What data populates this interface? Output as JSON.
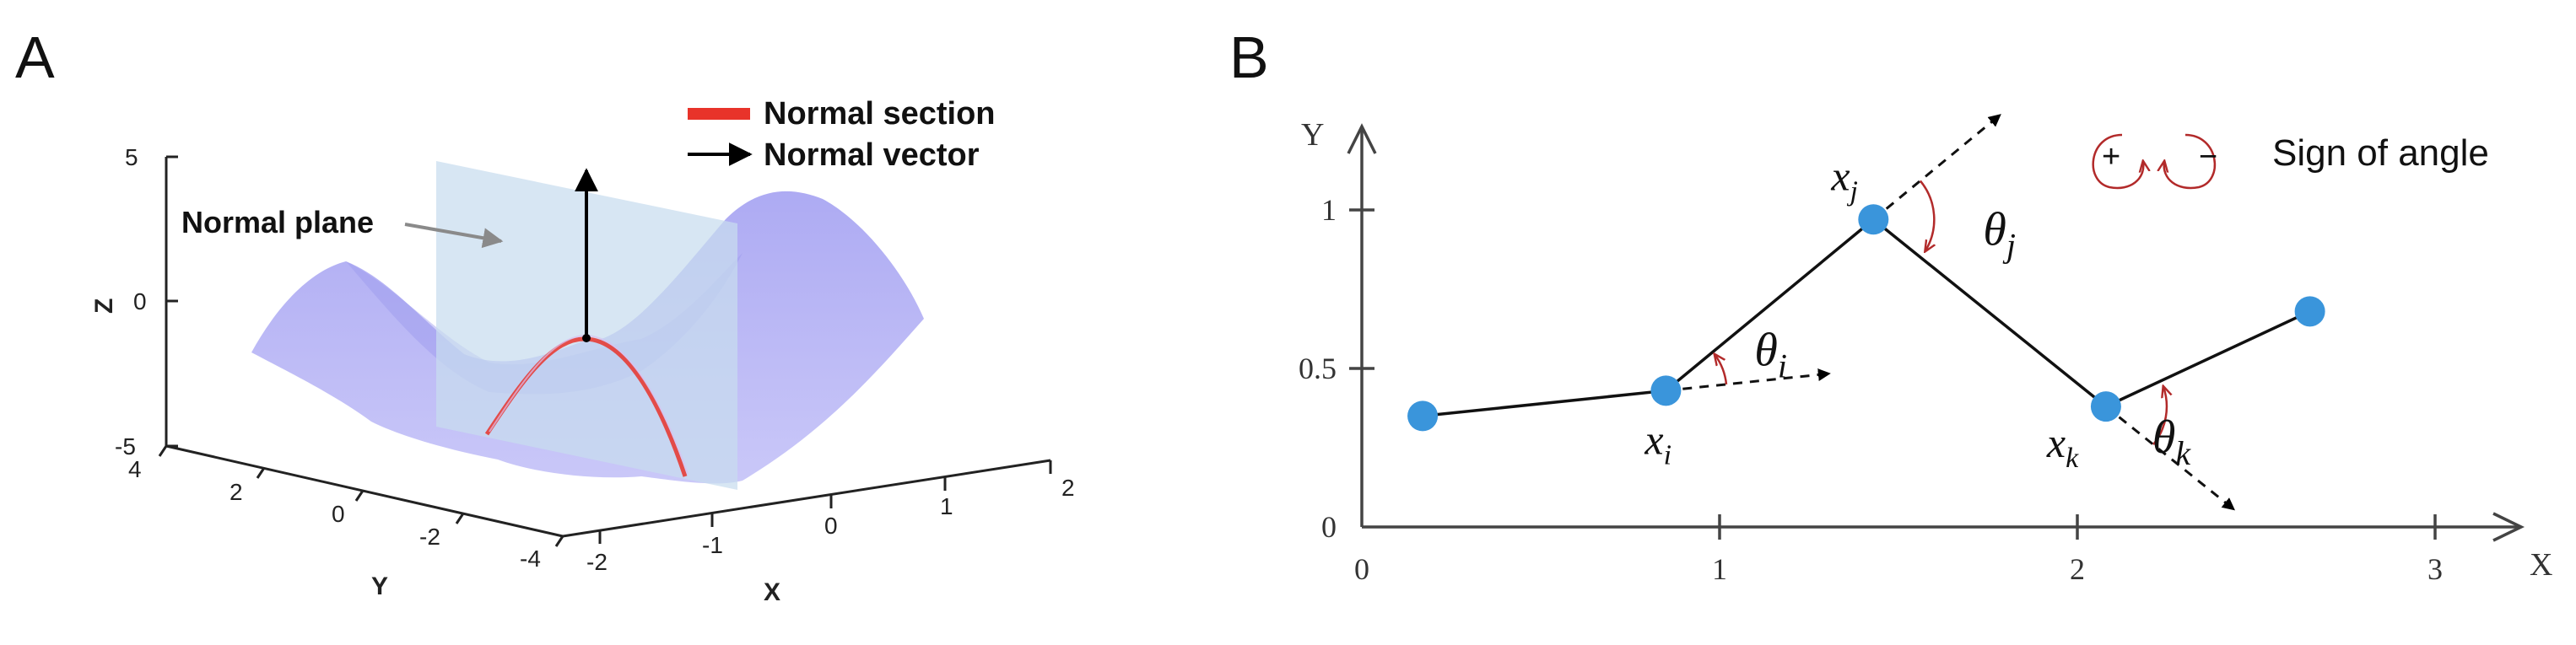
{
  "panel_a": {
    "label": "A",
    "legend": {
      "section_label": "Normal section",
      "vector_label": "Normal vector",
      "section_color": "#e8332a",
      "vector_color": "#000000"
    },
    "plane_label": "Normal plane",
    "axes": {
      "z_label": "Z",
      "z_ticks": [
        "5",
        "0",
        "-5"
      ],
      "y_label": "Y",
      "y_ticks": [
        "4",
        "2",
        "0",
        "-2",
        "-4"
      ],
      "x_label": "X",
      "x_ticks": [
        "-2",
        "-1",
        "0",
        "1",
        "2"
      ]
    },
    "surface_color": "#b6b4f5",
    "plane_color": "#c7dcef"
  },
  "panel_b": {
    "label": "B",
    "sign_label": "Sign of angle",
    "sign_plus": "+",
    "sign_minus": "−",
    "angle_color": "#b22a2a",
    "point_color": "#3a95db",
    "axes": {
      "x_label": "X",
      "y_label": "Y",
      "x_ticks": [
        "0",
        "1",
        "2",
        "3"
      ],
      "y_ticks": [
        "0",
        "0.5",
        "1"
      ]
    },
    "points": [
      {
        "x": 0.17,
        "y": 0.35
      },
      {
        "x": 0.85,
        "y": 0.43,
        "label": "x",
        "sub": "i",
        "angle": "θ",
        "angle_sub": "i"
      },
      {
        "x": 1.43,
        "y": 0.97,
        "label": "x",
        "sub": "j",
        "angle": "θ",
        "angle_sub": "j"
      },
      {
        "x": 2.08,
        "y": 0.38,
        "label": "x",
        "sub": "k",
        "angle": "θ",
        "angle_sub": "k"
      },
      {
        "x": 2.65,
        "y": 0.68
      }
    ]
  }
}
